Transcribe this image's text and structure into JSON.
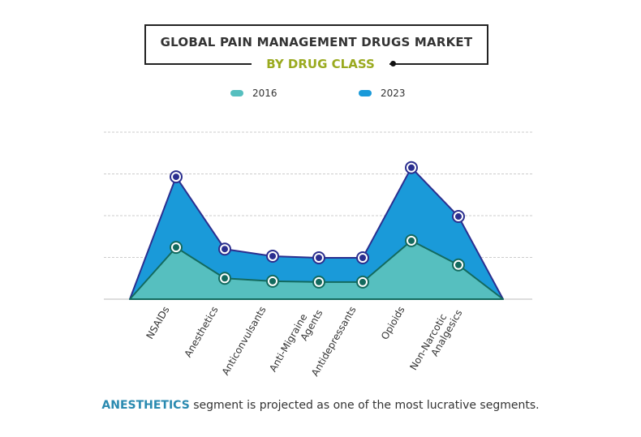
{
  "chart_data": {
    "type": "area",
    "title": "GLOBAL PAIN MANAGEMENT DRUGS MARKET",
    "subtitle": "BY DRUG CLASS",
    "categories": [
      "NSAIDs",
      "Anesthetics",
      "Anticonvulsants",
      "Anti-Migraine Agents",
      "Antidepressants",
      "Opioids",
      "Non-Narcotic Analgesics"
    ],
    "category_lines": [
      [
        "NSAIDs"
      ],
      [
        "Anesthetics"
      ],
      [
        "Anticonvulsants"
      ],
      [
        "Anti-Migraine",
        "Agents"
      ],
      [
        "Antidepressants"
      ],
      [
        "Opioids"
      ],
      [
        "Non-Narcotic",
        "Analgesics"
      ]
    ],
    "series": [
      {
        "name": "2016",
        "values": [
          1.24,
          0.5,
          0.43,
          0.41,
          0.41,
          1.4,
          0.82
        ],
        "color": "#56bfbf",
        "line": "#136a5e"
      },
      {
        "name": "2023",
        "values": [
          2.93,
          1.2,
          1.03,
          0.99,
          0.99,
          3.15,
          1.98
        ],
        "color": "#1a9ad9",
        "line": "#2b2f8f"
      }
    ],
    "ylim": [
      0,
      4
    ],
    "grid": true,
    "y_tick_labels_shown": false,
    "legend_position": "top-center",
    "note": {
      "highlight": "ANESTHETICS",
      "text": " segment is projected as one of the most lucrative segments."
    }
  }
}
